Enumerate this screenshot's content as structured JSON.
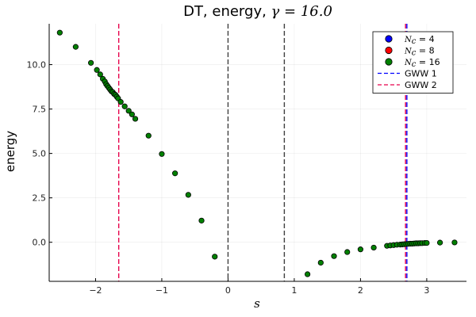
{
  "chart_data": {
    "type": "scatter",
    "title_parts": [
      "DT, energy, ",
      "γ = 16.0"
    ],
    "xlabel": "s",
    "ylabel": "energy",
    "xlim": [
      -2.7,
      3.6
    ],
    "ylim": [
      -2.2,
      12.3
    ],
    "xticks": [
      -2,
      -1,
      0,
      1,
      2,
      3
    ],
    "xtick_labels": [
      "−2",
      "−1",
      "0",
      "1",
      "2",
      "3"
    ],
    "yticks": [
      0.0,
      2.5,
      5.0,
      7.5,
      10.0
    ],
    "ytick_labels": [
      "0.0",
      "2.5",
      "5.0",
      "7.5",
      "10.0"
    ],
    "grid": true,
    "legend_position": "top-right",
    "series": [
      {
        "name": "N_c = 4",
        "legend_prefix": "N",
        "legend_sub": "c",
        "legend_suffix": " = 4",
        "color": "#0000ff",
        "x": [],
        "y": []
      },
      {
        "name": "N_c = 8",
        "legend_prefix": "N",
        "legend_sub": "c",
        "legend_suffix": " = 8",
        "color": "#ff0000",
        "x": [],
        "y": []
      },
      {
        "name": "N_c = 16",
        "legend_prefix": "N",
        "legend_sub": "c",
        "legend_suffix": " = 16",
        "color": "#008000",
        "x": [
          -2.54,
          -2.3,
          -2.07,
          -1.98,
          -1.93,
          -1.89,
          -1.86,
          -1.84,
          -1.82,
          -1.8,
          -1.78,
          -1.76,
          -1.74,
          -1.72,
          -1.7,
          -1.68,
          -1.66,
          -1.62,
          -1.56,
          -1.5,
          -1.45,
          -1.4,
          -1.2,
          -1.0,
          -0.8,
          -0.6,
          -0.4,
          -0.2,
          1.2,
          1.4,
          1.6,
          1.8,
          2.0,
          2.2,
          2.4,
          2.45,
          2.5,
          2.55,
          2.6,
          2.63,
          2.66,
          2.69,
          2.72,
          2.75,
          2.78,
          2.81,
          2.84,
          2.87,
          2.9,
          2.93,
          2.97,
          3.0,
          3.2,
          3.42
        ],
        "y": [
          11.8,
          11.0,
          10.1,
          9.7,
          9.45,
          9.2,
          9.05,
          8.9,
          8.8,
          8.7,
          8.6,
          8.5,
          8.45,
          8.35,
          8.3,
          8.2,
          8.1,
          7.9,
          7.65,
          7.4,
          7.2,
          6.95,
          6.0,
          4.97,
          3.88,
          2.67,
          1.22,
          -0.81,
          -1.8,
          -1.15,
          -0.78,
          -0.55,
          -0.4,
          -0.3,
          -0.2,
          -0.18,
          -0.16,
          -0.14,
          -0.13,
          -0.12,
          -0.11,
          -0.1,
          -0.09,
          -0.08,
          -0.08,
          -0.07,
          -0.06,
          -0.06,
          -0.05,
          -0.05,
          -0.04,
          -0.04,
          -0.02,
          -0.01
        ]
      }
    ],
    "vlines": [
      {
        "name": "GWW 1",
        "x": 2.7,
        "color": "#0000ff",
        "in_legend": true
      },
      {
        "name": "GWW 2",
        "x": 2.68,
        "color": "#e6004c",
        "in_legend": true
      },
      {
        "name": "",
        "x": -1.65,
        "color": "#e6004c",
        "in_legend": false
      },
      {
        "name": "",
        "x": 0.0,
        "color": "#404040",
        "in_legend": false
      },
      {
        "name": "",
        "x": 0.85,
        "color": "#404040",
        "in_legend": false
      }
    ]
  }
}
